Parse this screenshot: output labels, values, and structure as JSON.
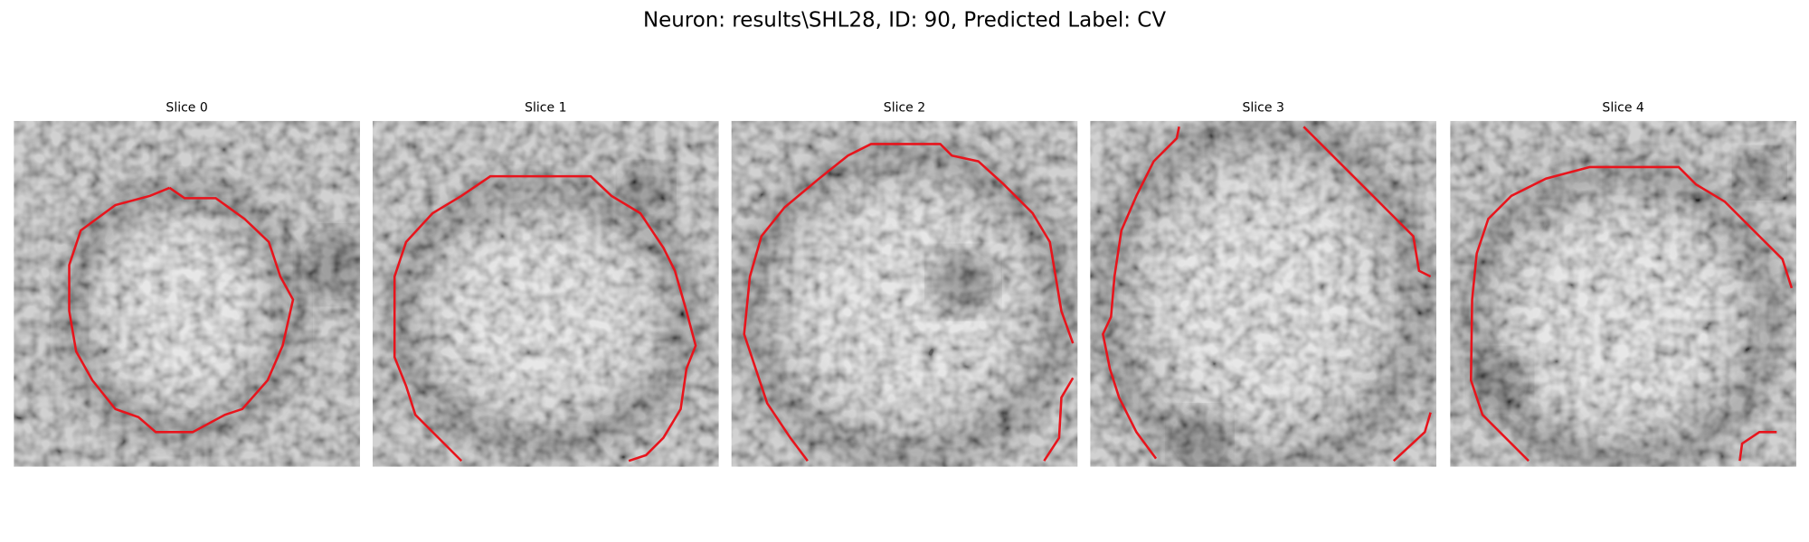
{
  "title": "Neuron: results\\SHL28, ID: 90, Predicted Label: CV",
  "panels": [
    {
      "title": "Slice 0"
    },
    {
      "title": "Slice 1"
    },
    {
      "title": "Slice 2"
    },
    {
      "title": "Slice 3"
    },
    {
      "title": "Slice 4"
    }
  ]
}
